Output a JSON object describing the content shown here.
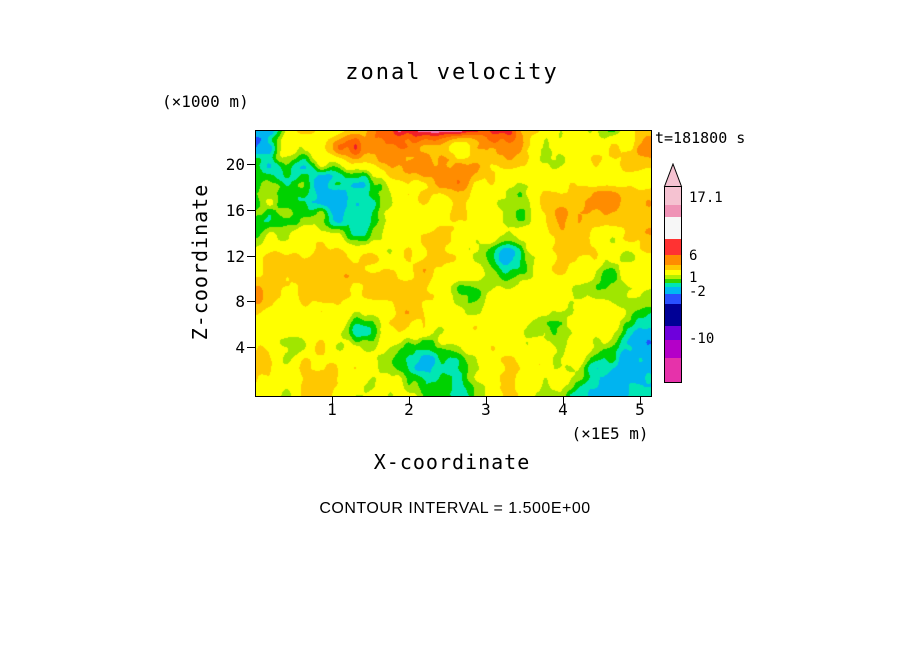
{
  "title": "zonal velocity",
  "time_label": "t=181800 s",
  "footer": "CONTOUR INTERVAL = 1.500E+00",
  "axes": {
    "x": {
      "label": "X-coordinate",
      "units": "(×1E5 m)",
      "ticks": [
        "1",
        "2",
        "3",
        "4",
        "5"
      ]
    },
    "y": {
      "label": "Z-coordinate",
      "units": "(×1000 m)",
      "ticks": [
        "20",
        "16",
        "12",
        "8",
        "4"
      ]
    }
  },
  "colorbar": {
    "labels": [
      "17.1",
      "6",
      "1",
      "-2",
      "-10"
    ],
    "segments": [
      {
        "color": "#f5c2d1",
        "h": 18
      },
      {
        "color": "#ef93b6",
        "h": 12
      },
      {
        "color": "#f7f7f7",
        "h": 22
      },
      {
        "color": "#ff3232",
        "h": 16
      },
      {
        "color": "#ff8c00",
        "h": 10
      },
      {
        "color": "#ffc800",
        "h": 5
      },
      {
        "color": "#ffff00",
        "h": 5
      },
      {
        "color": "#b4f000",
        "h": 4
      },
      {
        "color": "#32d700",
        "h": 4
      },
      {
        "color": "#00e6b4",
        "h": 4
      },
      {
        "color": "#00b9f2",
        "h": 7
      },
      {
        "color": "#2850ff",
        "h": 10
      },
      {
        "color": "#000096",
        "h": 22
      },
      {
        "color": "#6e00dc",
        "h": 14
      },
      {
        "color": "#b400c8",
        "h": 18
      },
      {
        "color": "#e632aa",
        "h": 24
      }
    ]
  },
  "chart_data": {
    "type": "heatmap",
    "title": "zonal velocity",
    "xlabel": "X-coordinate",
    "x_units": "×1E5 m",
    "ylabel": "Z-coordinate",
    "y_units": "×1000 m",
    "x_ticks": [
      1,
      2,
      3,
      4,
      5
    ],
    "z_ticks": [
      4,
      8,
      12,
      16,
      20
    ],
    "x_range": [
      0,
      5.1
    ],
    "z_range": [
      0,
      23
    ],
    "time_label": "t=181800 s",
    "contour_interval": 1.5,
    "value_min": -10,
    "value_max": 17.1,
    "colorbar_tick_values": [
      17.1,
      6,
      1,
      -2,
      -10
    ],
    "legend_position": "right",
    "grid": false,
    "color_scale": [
      {
        "upto": -11.5,
        "color": "#d428b4"
      },
      {
        "upto": -10,
        "color": "#8c00dc"
      },
      {
        "upto": -7,
        "color": "#000096"
      },
      {
        "upto": -4.5,
        "color": "#1e50ff"
      },
      {
        "upto": -2,
        "color": "#00b4f0"
      },
      {
        "upto": -0.5,
        "color": "#00e6b4"
      },
      {
        "upto": 1,
        "color": "#00d200"
      },
      {
        "upto": 2.5,
        "color": "#a0e600"
      },
      {
        "upto": 6,
        "color": "#ffff00"
      },
      {
        "upto": 8.5,
        "color": "#ffc800"
      },
      {
        "upto": 11,
        "color": "#ff8c00"
      },
      {
        "upto": 13,
        "color": "#ff6400"
      },
      {
        "upto": 14.5,
        "color": "#f01e28"
      },
      {
        "upto": 16,
        "color": "#f078b4"
      },
      {
        "upto": 9999,
        "color": "#f8c8d7"
      }
    ]
  }
}
